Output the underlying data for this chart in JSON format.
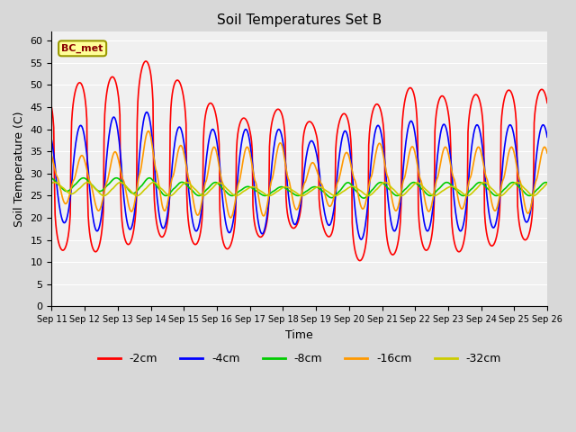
{
  "title": "Soil Temperatures Set B",
  "xlabel": "Time",
  "ylabel": "Soil Temperature (C)",
  "annotation": "BC_met",
  "ylim": [
    0,
    62
  ],
  "yticks": [
    0,
    5,
    10,
    15,
    20,
    25,
    30,
    35,
    40,
    45,
    50,
    55,
    60
  ],
  "n_days": 15,
  "x_labels": [
    "Sep 11",
    "Sep 12",
    "Sep 13",
    "Sep 14",
    "Sep 15",
    "Sep 16",
    "Sep 17",
    "Sep 18",
    "Sep 19",
    "Sep 20",
    "Sep 21",
    "Sep 22",
    "Sep 23",
    "Sep 24",
    "Sep 25",
    "Sep 26"
  ],
  "colors": {
    "-2cm": "#ff0000",
    "-4cm": "#0000ff",
    "-8cm": "#00cc00",
    "-16cm": "#ff9900",
    "-32cm": "#cccc00"
  },
  "fig_bg_color": "#d8d8d8",
  "plot_bg_color": "#f0f0f0",
  "grid_color": "#ffffff",
  "linewidth": 1.2,
  "peak_2cm": [
    48,
    51,
    52,
    56,
    50,
    45,
    42,
    45,
    41,
    44,
    46,
    50,
    47,
    48,
    49
  ],
  "valley_2cm": [
    13,
    12,
    13,
    16,
    15,
    12,
    15,
    17,
    19,
    10,
    11,
    13,
    12,
    13,
    15
  ],
  "peak_4cm": [
    40,
    41,
    43,
    44,
    40,
    40,
    40,
    40,
    37,
    40,
    41,
    42,
    41,
    41,
    41
  ],
  "valley_4cm": [
    20,
    17,
    17,
    18,
    17,
    17,
    16,
    17,
    21,
    14,
    17,
    17,
    17,
    17,
    19
  ],
  "peak_8cm": [
    29,
    29,
    29,
    29,
    28,
    28,
    27,
    27,
    27,
    28,
    28,
    28,
    28,
    28,
    28
  ],
  "valley_8cm": [
    26,
    26,
    26,
    25,
    25,
    25,
    25,
    25,
    25,
    24,
    25,
    25,
    25,
    25,
    25
  ],
  "peak_16cm": [
    35,
    34,
    35,
    40,
    36,
    36,
    36,
    37,
    32,
    35,
    37,
    36,
    36,
    36,
    36
  ],
  "valley_16cm": [
    24,
    22,
    21,
    22,
    21,
    20,
    20,
    21,
    23,
    22,
    22,
    21,
    22,
    22,
    21
  ],
  "peak_32cm": [
    28,
    28,
    28,
    28,
    28,
    28,
    27,
    27,
    27,
    27,
    28,
    28,
    27,
    28,
    28
  ],
  "valley_32cm": [
    26,
    25,
    25,
    25,
    25,
    25,
    25,
    25,
    25,
    25,
    25,
    25,
    25,
    25,
    25
  ],
  "phase_2cm": 14,
  "phase_4cm": 15,
  "phase_8cm": 17,
  "phase_16cm": 16,
  "phase_32cm": 20,
  "sharp_2cm": 3.5
}
